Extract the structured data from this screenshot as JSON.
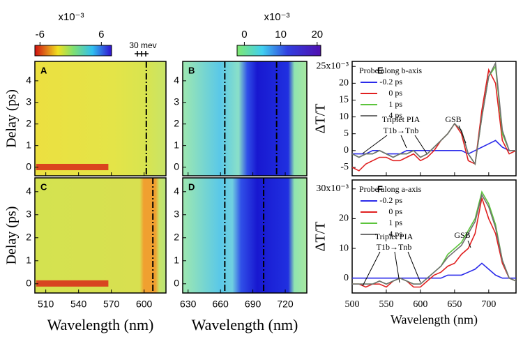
{
  "chart_data": [
    {
      "type": "colorbar",
      "label": "x10⁻³",
      "xlim": [
        -7,
        8
      ],
      "xticks": [
        -6,
        6
      ]
    },
    {
      "type": "colorbar",
      "label": "x10⁻³",
      "xlim": [
        -2,
        21
      ],
      "xticks": [
        0,
        10,
        20
      ]
    },
    {
      "type": "heatmap",
      "label": "A",
      "ylabel": "Delay (ps)",
      "xlim": [
        500,
        620
      ],
      "xticks": [
        510,
        540,
        570,
        600
      ],
      "show_xtick_labels": false,
      "ylim": [
        -0.4,
        4.9
      ],
      "yticks": [
        0,
        1,
        2,
        3,
        4
      ],
      "markers": [
        602
      ],
      "annotations": [
        "30 mev"
      ]
    },
    {
      "type": "heatmap",
      "label": "B",
      "xlim": [
        625,
        740
      ],
      "xticks": [
        630,
        660,
        690,
        720
      ],
      "show_xtick_labels": false,
      "ylim": [
        -0.4,
        4.9
      ],
      "yticks": [
        0,
        1,
        2,
        3,
        4
      ],
      "markers": [
        664,
        712
      ]
    },
    {
      "type": "heatmap",
      "label": "C",
      "ylabel": "Delay (ps)",
      "xlabel": "Wavelength (nm)",
      "xlim": [
        500,
        620
      ],
      "xticks": [
        510,
        540,
        570,
        600
      ],
      "show_xtick_labels": true,
      "ylim": [
        -0.4,
        4.6
      ],
      "yticks": [
        0,
        1,
        2,
        3,
        4
      ],
      "markers": [
        608
      ]
    },
    {
      "type": "heatmap",
      "label": "D",
      "xlabel": "Wavelength (nm)",
      "xlim": [
        625,
        740
      ],
      "xticks": [
        630,
        660,
        690,
        720
      ],
      "show_xtick_labels": true,
      "ylim": [
        -0.4,
        4.6
      ],
      "yticks": [
        0,
        1,
        2,
        3,
        4
      ],
      "markers": [
        664,
        700
      ]
    },
    {
      "type": "line",
      "label": "E",
      "ylabel": "ΔT/T",
      "legend_title": "Probe along b-axis",
      "xlim": [
        500,
        740
      ],
      "xticks": [
        500,
        550,
        600,
        650,
        700
      ],
      "show_xtick_labels": false,
      "ylim": [
        -7.5,
        26.5
      ],
      "yticks": [
        -5,
        0,
        5,
        10,
        15,
        20,
        {
          "value": 25,
          "label": "25x10⁻³"
        }
      ],
      "annotations": [
        "GSB",
        "Triplet PIA",
        "T1b→Tnb"
      ],
      "x": [
        500,
        510,
        520,
        530,
        540,
        550,
        560,
        570,
        580,
        590,
        600,
        610,
        620,
        630,
        640,
        650,
        660,
        670,
        680,
        690,
        700,
        710,
        720,
        730,
        740
      ],
      "series": [
        {
          "name": "-0.2 ps",
          "color": "#2b2bea",
          "values": [
            -1,
            -1,
            -1,
            0,
            0,
            -1,
            -1,
            -1,
            0,
            0,
            0,
            0,
            0,
            0,
            0,
            0,
            0,
            -1,
            0,
            1,
            2,
            3,
            1,
            0,
            0
          ]
        },
        {
          "name": "0 ps",
          "color": "#e02020",
          "values": [
            -5,
            -6,
            -4,
            -3,
            -2,
            -2,
            -3,
            -3,
            -2,
            -1,
            -3,
            -2,
            0,
            3,
            5,
            8,
            5,
            -3,
            -4,
            12,
            24,
            20,
            3,
            -1,
            0
          ]
        },
        {
          "name": "1 ps",
          "color": "#5cc43c",
          "values": [
            -1,
            -2,
            -1,
            -1,
            0,
            -1,
            -2,
            -1,
            -1,
            0,
            -2,
            -1,
            1,
            3,
            5,
            8,
            6,
            -1,
            -4,
            10,
            22,
            25,
            5,
            0,
            0
          ]
        },
        {
          "name": "4 ps",
          "color": "#707070",
          "values": [
            -1,
            -2,
            -1,
            -1,
            0,
            -1,
            -2,
            -1,
            -1,
            0,
            -2,
            -1,
            1,
            3,
            5,
            8,
            6,
            -1,
            -4,
            10,
            22,
            26,
            6,
            0,
            0
          ]
        }
      ]
    },
    {
      "type": "line",
      "label": "F",
      "ylabel": "ΔT/T",
      "xlabel": "Wavelength (nm)",
      "legend_title": "Probe along a-axis",
      "xlim": [
        500,
        740
      ],
      "xticks": [
        500,
        550,
        600,
        650,
        700
      ],
      "show_xtick_labels": true,
      "ylim": [
        -5,
        33
      ],
      "yticks": [
        0,
        10,
        20,
        {
          "value": 30,
          "label": "30x10⁻³"
        }
      ],
      "annotations": [
        "GSB",
        "Triplet PIA",
        "T1b→Tnb"
      ],
      "x": [
        500,
        510,
        520,
        530,
        540,
        550,
        560,
        570,
        580,
        590,
        600,
        610,
        620,
        630,
        640,
        650,
        660,
        670,
        680,
        690,
        700,
        710,
        720,
        730,
        740
      ],
      "series": [
        {
          "name": "-0.2 ps",
          "color": "#2b2bea",
          "values": [
            0,
            0,
            0,
            0,
            0,
            0,
            0,
            0,
            0,
            0,
            0,
            0,
            0,
            0,
            1,
            1,
            1,
            2,
            3,
            5,
            3,
            1,
            0,
            0,
            0
          ]
        },
        {
          "name": "0 ps",
          "color": "#e02020",
          "values": [
            -2,
            -2,
            -3,
            -2,
            -2,
            -3,
            -1,
            0,
            -1,
            -3,
            -3,
            -1,
            1,
            2,
            4,
            5,
            8,
            10,
            15,
            27,
            20,
            15,
            5,
            0,
            -1
          ]
        },
        {
          "name": "1 ps",
          "color": "#5cc43c",
          "values": [
            -2,
            -2,
            -2,
            -2,
            -1,
            -2,
            -1,
            0,
            -1,
            -2,
            -2,
            0,
            2,
            4,
            8,
            10,
            12,
            16,
            20,
            29,
            25,
            18,
            6,
            0,
            -1
          ]
        },
        {
          "name": "4 ps",
          "color": "#707070",
          "values": [
            -2,
            -2,
            -2,
            -2,
            -1,
            -2,
            -1,
            0,
            -1,
            -2,
            -2,
            0,
            2,
            4,
            7,
            9,
            11,
            15,
            19,
            28,
            24,
            17,
            6,
            0,
            -1
          ]
        }
      ]
    }
  ]
}
